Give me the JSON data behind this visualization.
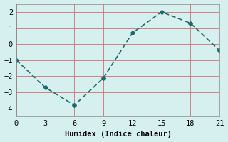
{
  "x": [
    0,
    3,
    6,
    9,
    12,
    15,
    18,
    21
  ],
  "y": [
    -1.0,
    -2.7,
    -3.8,
    -2.1,
    0.7,
    2.0,
    1.3,
    -0.4
  ],
  "xlabel": "Humidex (Indice chaleur)",
  "line_color": "#1a6b6b",
  "background_color": "#d6f0ef",
  "grid_color": "#d08080",
  "xlim": [
    0,
    21
  ],
  "ylim": [
    -4.5,
    2.5
  ],
  "xticks": [
    0,
    3,
    6,
    9,
    12,
    15,
    18,
    21
  ],
  "yticks": [
    -4,
    -3,
    -2,
    -1,
    0,
    1,
    2
  ]
}
